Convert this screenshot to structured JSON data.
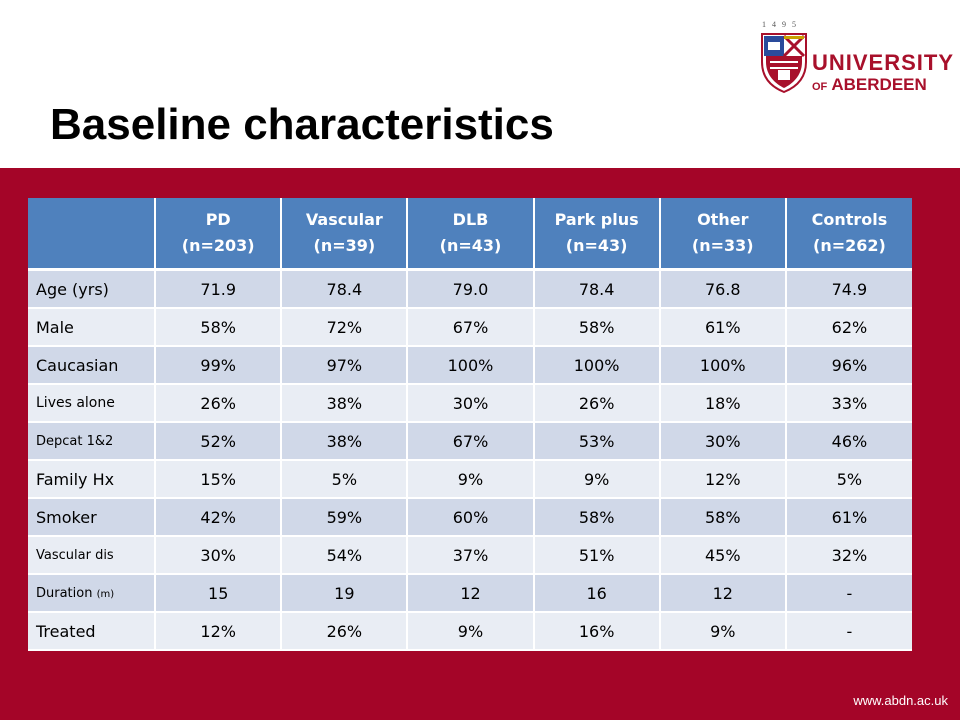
{
  "slide": {
    "title": "Baseline characteristics",
    "footer_url": "www.abdn.ac.uk"
  },
  "logo": {
    "years": "1495",
    "university": "UNIVERSITY",
    "of": "OF",
    "aberdeen": "ABERDEEN"
  },
  "colors": {
    "band": "#a40528",
    "header": "#4f81bd",
    "row_odd": "#d0d8e8",
    "row_even": "#e9edf4",
    "logo_red": "#a8102b"
  },
  "table": {
    "headers": [
      {
        "name": "",
        "n": ""
      },
      {
        "name": "PD",
        "n": "(n=203)"
      },
      {
        "name": "Vascular",
        "n": "(n=39)"
      },
      {
        "name": "DLB",
        "n": "(n=43)"
      },
      {
        "name": "Park plus",
        "n": "(n=43)"
      },
      {
        "name": "Other",
        "n": "(n=33)"
      },
      {
        "name": "Controls",
        "n": "(n=262)"
      }
    ],
    "rows": [
      {
        "label": "Age (yrs)",
        "unit": "",
        "size": "normal",
        "values": [
          "71.9",
          "78.4",
          "79.0",
          "78.4",
          "76.8",
          "74.9"
        ]
      },
      {
        "label": "Male",
        "unit": "",
        "size": "normal",
        "values": [
          "58%",
          "72%",
          "67%",
          "58%",
          "61%",
          "62%"
        ]
      },
      {
        "label": "Caucasian",
        "unit": "",
        "size": "normal",
        "values": [
          "99%",
          "97%",
          "100%",
          "100%",
          "100%",
          "96%"
        ]
      },
      {
        "label": "Lives alone",
        "unit": "",
        "size": "small",
        "values": [
          "26%",
          "38%",
          "30%",
          "26%",
          "18%",
          "33%"
        ]
      },
      {
        "label": "Depcat 1&2",
        "unit": "",
        "size": "smaller",
        "values": [
          "52%",
          "38%",
          "67%",
          "53%",
          "30%",
          "46%"
        ]
      },
      {
        "label": "Family Hx",
        "unit": "",
        "size": "normal",
        "values": [
          "15%",
          "5%",
          "9%",
          "9%",
          "12%",
          "5%"
        ]
      },
      {
        "label": "Smoker",
        "unit": "",
        "size": "normal",
        "values": [
          "42%",
          "59%",
          "60%",
          "58%",
          "58%",
          "61%"
        ]
      },
      {
        "label": "Vascular dis",
        "unit": "",
        "size": "smaller",
        "values": [
          "30%",
          "54%",
          "37%",
          "51%",
          "45%",
          "32%"
        ]
      },
      {
        "label": "Duration ",
        "unit": "(m)",
        "size": "smaller",
        "values": [
          "15",
          "19",
          "12",
          "16",
          "12",
          "-"
        ]
      },
      {
        "label": "Treated",
        "unit": "",
        "size": "normal",
        "values": [
          "12%",
          "26%",
          "9%",
          "16%",
          "9%",
          "-"
        ]
      }
    ]
  }
}
